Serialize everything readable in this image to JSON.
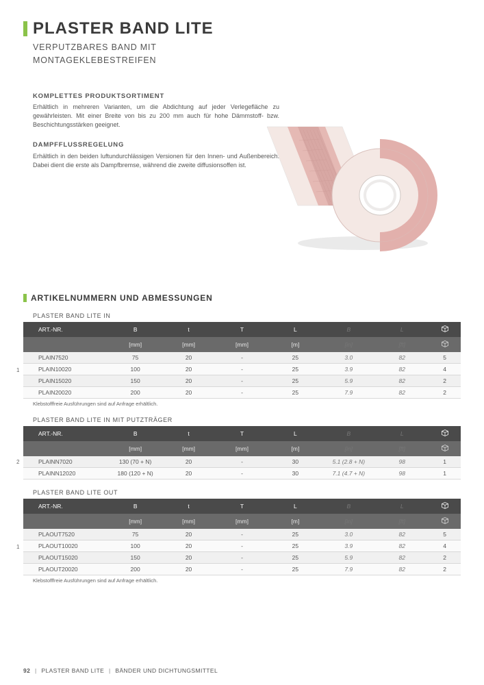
{
  "colors": {
    "accent": "#8bc34a",
    "text": "#4a4a4a",
    "header_row1": "#4a4a4a",
    "header_row2": "#6a6a6a",
    "row_odd": "#f0f0f0",
    "row_even": "#fafafa",
    "background": "#ffffff"
  },
  "title": "PLASTER BAND LITE",
  "subtitle_line1": "VERPUTZBARES BAND MIT",
  "subtitle_line2": "MONTAGEKLEBESTREIFEN",
  "intro": {
    "h1": "KOMPLETTES PRODUKTSORTIMENT",
    "p1": "Erhältlich in mehreren Varianten, um die Abdichtung auf jeder Verlegefläche zu gewährleisten. Mit einer Breite von bis zu 200 mm auch für hohe Dämmstoff- bzw. Beschichtungsstärken geeignet.",
    "h2": "DAMPFFLUSSREGELUNG",
    "p2": "Erhältlich in den beiden luftundurchlässigen Versionen für den Innen- und Außenbereich. Dabei dient die erste als Dampfbremse, während die zweite diffusionsoffen ist."
  },
  "section2_title": "ARTIKELNUMMERN UND ABMESSUNGEN",
  "table_headers": {
    "row1": [
      "ART.-NR.",
      "B",
      "t",
      "T",
      "L",
      "B",
      "L",
      ""
    ],
    "row2": [
      "",
      "[mm]",
      "[mm]",
      "[mm]",
      "[m]",
      "[in]",
      "[ft]",
      ""
    ]
  },
  "tables": [
    {
      "title": "PLASTER BAND LITE IN",
      "side_num": "1",
      "note": "Klebstofffreie Ausführungen sind auf Anfrage erhältlich.",
      "rows": [
        [
          "PLAIN7520",
          "75",
          "20",
          "-",
          "25",
          "3.0",
          "82",
          "5"
        ],
        [
          "PLAIN10020",
          "100",
          "20",
          "-",
          "25",
          "3.9",
          "82",
          "4"
        ],
        [
          "PLAIN15020",
          "150",
          "20",
          "-",
          "25",
          "5.9",
          "82",
          "2"
        ],
        [
          "PLAIN20020",
          "200",
          "20",
          "-",
          "25",
          "7.9",
          "82",
          "2"
        ]
      ]
    },
    {
      "title": "PLASTER BAND LITE IN MIT PUTZTRÄGER",
      "side_num": "2",
      "note": "",
      "rows": [
        [
          "PLAINN7020",
          "130 (70 + N)",
          "20",
          "-",
          "30",
          "5.1 (2.8 + N)",
          "98",
          "1"
        ],
        [
          "PLAINN12020",
          "180 (120 + N)",
          "20",
          "-",
          "30",
          "7.1 (4.7 + N)",
          "98",
          "1"
        ]
      ]
    },
    {
      "title": "PLASTER BAND LITE OUT",
      "side_num": "1",
      "note": "Klebstofffreie Ausführungen sind auf Anfrage erhältlich.",
      "rows": [
        [
          "PLAOUT7520",
          "75",
          "20",
          "-",
          "25",
          "3.0",
          "82",
          "5"
        ],
        [
          "PLAOUT10020",
          "100",
          "20",
          "-",
          "25",
          "3.9",
          "82",
          "4"
        ],
        [
          "PLAOUT15020",
          "150",
          "20",
          "-",
          "25",
          "5.9",
          "82",
          "2"
        ],
        [
          "PLAOUT20020",
          "200",
          "20",
          "-",
          "25",
          "7.9",
          "82",
          "2"
        ]
      ]
    }
  ],
  "footer": {
    "page": "92",
    "crumb1": "PLASTER BAND LITE",
    "crumb2": "BÄNDER UND DICHTUNGSMITTEL"
  },
  "product_svg": {
    "roll_light": "#f4e8e4",
    "roll_pink": "#e2b0ac",
    "roll_mesh": "#d8a8a4",
    "roll_core": "#ffffff",
    "shadow": "#e8e8e8"
  }
}
